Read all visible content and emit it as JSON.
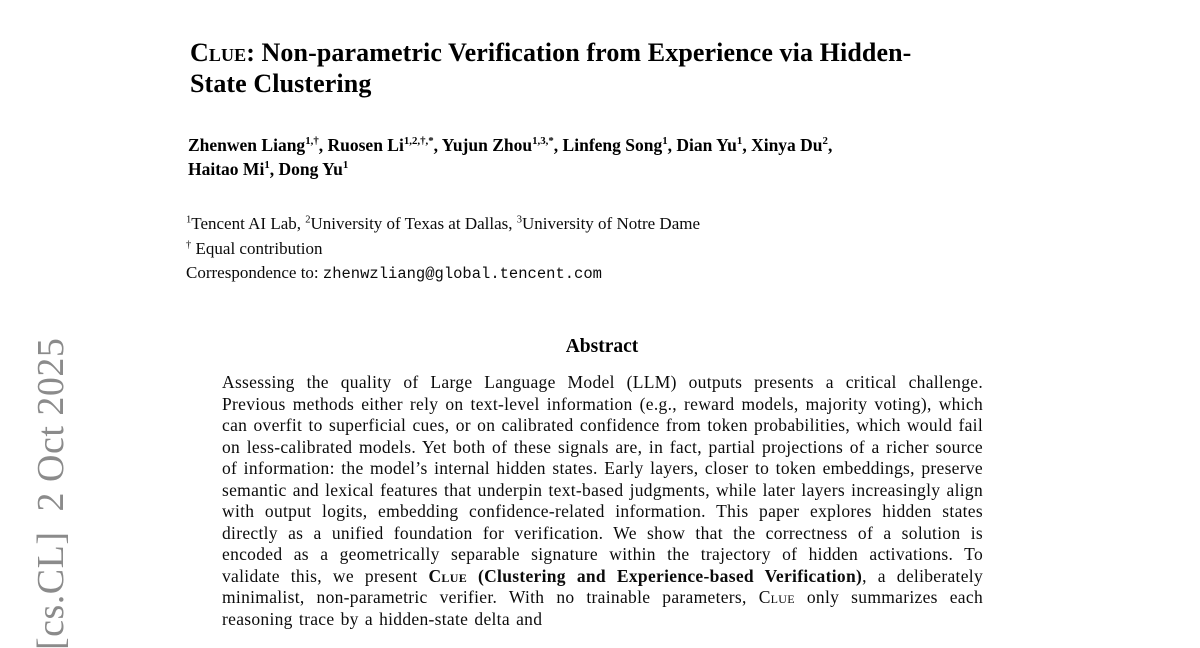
{
  "watermark": {
    "text": "[cs.CL]  2 Oct 2025",
    "color": "#8b8b8b"
  },
  "title": {
    "line1_smallcaps": "Clue",
    "line1_rest": ": Non-parametric Verification from Experience via Hidden-",
    "line2": "State Clustering"
  },
  "authors": {
    "line1": [
      {
        "name": "Zhenwen Liang",
        "sup": "1,†",
        "sep": ", "
      },
      {
        "name": "Ruosen Li",
        "sup": "1,2,†,*",
        "sep": ", "
      },
      {
        "name": "Yujun Zhou",
        "sup": "1,3,*",
        "sep": ",  "
      },
      {
        "name": "Linfeng Song",
        "sup": "1",
        "sep": ", "
      },
      {
        "name": "Dian Yu",
        "sup": "1",
        "sep": ", "
      },
      {
        "name": "Xinya Du",
        "sup": "2",
        "sep": ","
      }
    ],
    "line2": [
      {
        "name": "Haitao Mi",
        "sup": "1",
        "sep": ", "
      },
      {
        "name": "Dong Yu",
        "sup": "1",
        "sep": ""
      }
    ]
  },
  "affiliations": [
    {
      "sup": "1",
      "name": "Tencent AI Lab",
      "sep": ", "
    },
    {
      "sup": "2",
      "name": "University of Texas at Dallas",
      "sep": ", "
    },
    {
      "sup": "3",
      "name": "University of Notre Dame",
      "sep": ""
    }
  ],
  "contribution": {
    "sup": "†",
    "text": " Equal contribution"
  },
  "correspondence": {
    "label": "Correspondence to: ",
    "email": "zhenwzliang@global.tencent.com"
  },
  "abstract": {
    "heading": "Abstract",
    "text_before": "Assessing the quality of Large Language Model (LLM) outputs presents a critical challenge. Previous methods either rely on text-level information (e.g., reward models, majority voting), which can overfit to superficial cues, or on calibrated confidence from token probabilities, which would fail on less-calibrated models. Yet both of these signals are, in fact, partial projections of a richer source of information: the model’s internal hidden states. Early layers, closer to token embeddings, preserve semantic and lexical features that underpin text-based judgments, while later layers increasingly align with output logits, embedding confidence-related information. This paper explores hidden states directly as a unified foundation for verification. We show that the correctness of a solution is encoded as a geometrically separable signature within the trajectory of hidden activations. To validate this, we present ",
    "bold_smallcaps": "Clue",
    "bold_rest": " (Clustering and Experience-based Verification)",
    "text_middle": ", a deliberately minimalist, non-parametric verifier. With no trainable parameters, ",
    "smallcaps2": "Clue",
    "text_after": " only summarizes each reasoning trace by a hidden-state delta and"
  }
}
